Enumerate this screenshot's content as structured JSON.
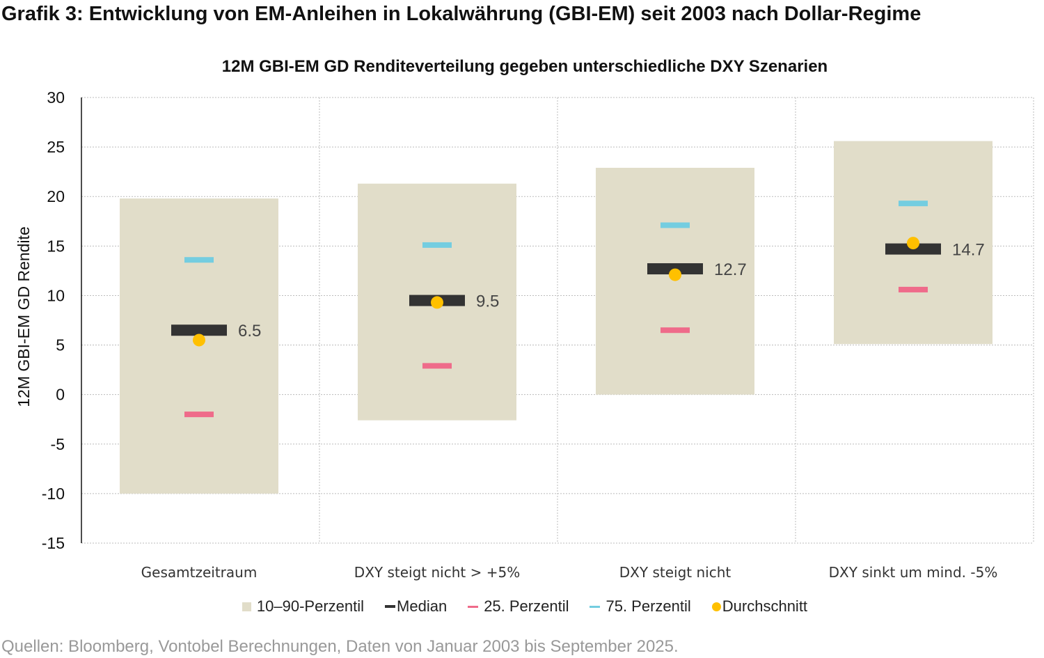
{
  "title": "Grafik 3: Entwicklung von EM-Anleihen in Lokalwährung (GBI-EM) seit 2003 nach Dollar-Regime",
  "source": "Quellen: Bloomberg, Vontobel Berechnungen, Daten von Januar 2003 bis September 2025.",
  "chart_data": {
    "type": "box",
    "title": "12M GBI-EM GD Renditeverteilung  gegeben unterschiedliche DXY Szenarien",
    "ylabel": "12M GBI-EM GD Rendite",
    "ylim": [
      -15,
      30
    ],
    "yticks": [
      30,
      25,
      20,
      15,
      10,
      5,
      0,
      -5,
      -10,
      -15
    ],
    "grid": true,
    "legend_position": "bottom",
    "categories": [
      "Gesamtzeitraum",
      "DXY steigt nicht > +5%",
      "DXY steigt nicht",
      "DXY sinkt um mind. -5%"
    ],
    "series": [
      {
        "name": "10–90-Perzentil",
        "color": "#e1ddc9",
        "low": [
          -10,
          -2.6,
          0,
          5.1
        ],
        "high": [
          19.8,
          21.3,
          22.9,
          25.6
        ]
      },
      {
        "name": "Median",
        "color": "#333333",
        "values": [
          6.5,
          9.5,
          12.7,
          14.7
        ]
      },
      {
        "name": "25. Perzentil",
        "color": "#ef6b8a",
        "values": [
          -2.0,
          2.9,
          6.5,
          10.6
        ]
      },
      {
        "name": "75. Perzentil",
        "color": "#74cde0",
        "values": [
          13.6,
          15.1,
          17.1,
          19.3
        ]
      },
      {
        "name": "Durchschnitt",
        "color": "#ffc000",
        "values": [
          5.5,
          9.3,
          12.1,
          15.3
        ]
      }
    ],
    "data_labels": [
      "6.5",
      "9.5",
      "12.7",
      "14.7"
    ]
  }
}
